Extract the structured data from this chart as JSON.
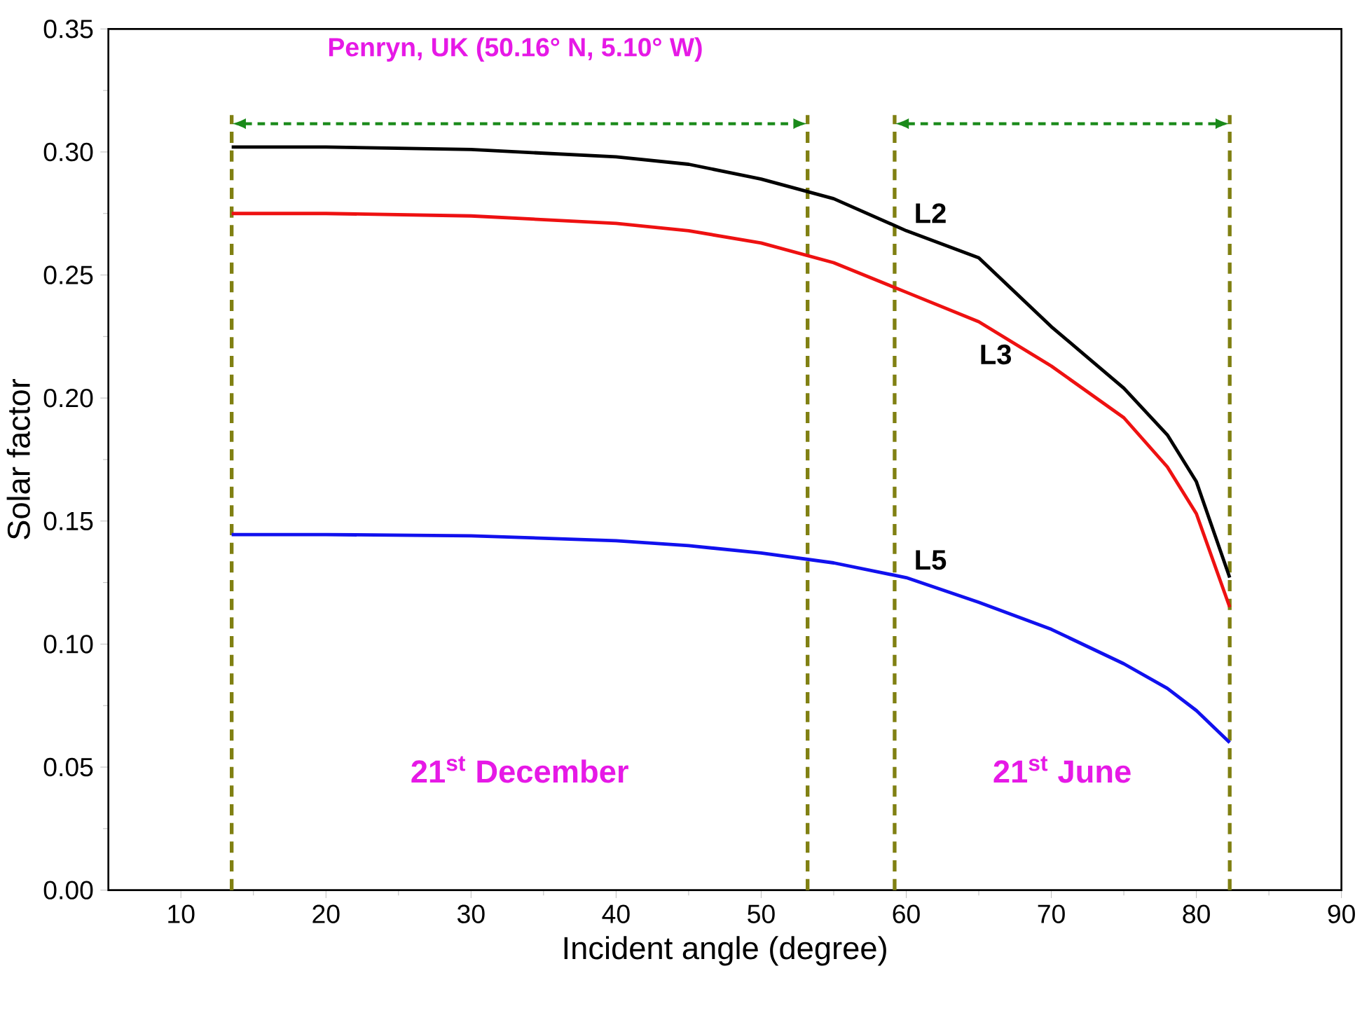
{
  "chart_data": {
    "type": "line",
    "title": "Penryn, UK (50.16° N, 5.10° W)",
    "xlabel": "Incident angle (degree)",
    "ylabel": "Solar factor",
    "x": [
      13.5,
      20,
      30,
      40,
      45,
      50,
      55,
      60,
      65,
      70,
      75,
      78,
      80,
      82.3
    ],
    "series": [
      {
        "name": "L2",
        "color": "#000000",
        "values": [
          0.302,
          0.302,
          0.301,
          0.298,
          0.295,
          0.289,
          0.281,
          0.268,
          0.257,
          0.229,
          0.204,
          0.185,
          0.166,
          0.127
        ]
      },
      {
        "name": "L3",
        "color": "#ee1111",
        "values": [
          0.275,
          0.275,
          0.274,
          0.271,
          0.268,
          0.263,
          0.255,
          0.243,
          0.231,
          0.213,
          0.192,
          0.172,
          0.153,
          0.115
        ]
      },
      {
        "name": "L5",
        "color": "#1111ee",
        "values": [
          0.1445,
          0.1445,
          0.144,
          0.142,
          0.14,
          0.137,
          0.133,
          0.127,
          0.117,
          0.106,
          0.092,
          0.082,
          0.073,
          0.06
        ]
      }
    ],
    "xlim": [
      5,
      90
    ],
    "xticks": [
      10,
      20,
      30,
      40,
      50,
      60,
      70,
      80,
      90
    ],
    "ylim": [
      0,
      0.35
    ],
    "yticks": [
      {
        "value": 0,
        "label": "0.00"
      },
      {
        "value": 0.05,
        "label": "0.05"
      },
      {
        "value": 0.1,
        "label": "0.10"
      },
      {
        "value": 0.15,
        "label": "0.15"
      },
      {
        "value": 0.2,
        "label": "0.20"
      },
      {
        "value": 0.25,
        "label": "0.25"
      },
      {
        "value": 0.3,
        "label": "0.30"
      },
      {
        "value": 0.35,
        "label": "0.35"
      }
    ],
    "ref_lines": [
      {
        "axis": "x",
        "value": 13.5,
        "color": "#808012",
        "line_style": "dashed"
      },
      {
        "axis": "x",
        "value": 53.2,
        "color": "#808012",
        "line_style": "dashed"
      },
      {
        "axis": "x",
        "value": 59.2,
        "color": "#808012",
        "line_style": "dashed"
      },
      {
        "axis": "x",
        "value": 82.3,
        "color": "#808012",
        "line_style": "dashed"
      }
    ],
    "annotations": [
      "21$^{st}$ December",
      "21$^{st}$ June"
    ],
    "grid": false,
    "marker": "none",
    "line_style": "solid"
  }
}
